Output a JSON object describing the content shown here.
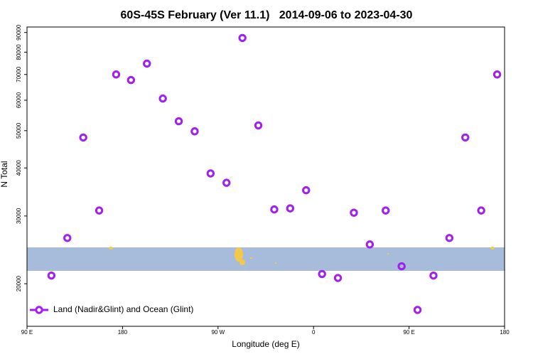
{
  "chart_data": {
    "type": "scatter",
    "title": "60S-45S February (Ver 11.1)   2014-09-06 to 2023-04-30",
    "xlabel": "Longitude (deg E)",
    "ylabel": "N Total",
    "xlim": [
      90,
      540
    ],
    "xticks": [
      {
        "value": 90,
        "label": "90 E"
      },
      {
        "value": 180,
        "label": "180"
      },
      {
        "value": 270,
        "label": "90 W"
      },
      {
        "value": 360,
        "label": "0"
      },
      {
        "value": 450,
        "label": "90 E"
      },
      {
        "value": 540,
        "label": "180"
      }
    ],
    "ylim": [
      15500,
      93000
    ],
    "ylog": true,
    "yticks": [
      20000,
      30000,
      40000,
      50000,
      60000,
      70000,
      80000,
      90000
    ],
    "legend": "lower left",
    "series": [
      {
        "name": "Land (Nadir&Glint) and Ocean (Glint)",
        "color": "#a020f0",
        "x": [
          113,
          128,
          143,
          158,
          174,
          188,
          203,
          218,
          233,
          248,
          263,
          278,
          293,
          308,
          323,
          338,
          353,
          368,
          383,
          398,
          413,
          428,
          443,
          458,
          473,
          488,
          503,
          518,
          533
        ],
        "values": [
          21000,
          26300,
          48000,
          31000,
          70000,
          67700,
          74700,
          60600,
          52900,
          49800,
          38700,
          36600,
          87100,
          51600,
          31200,
          31400,
          35000,
          21200,
          20700,
          30600,
          25300,
          31000,
          22200,
          17100,
          21000,
          26300,
          48000,
          31000,
          70000
        ]
      }
    ]
  }
}
